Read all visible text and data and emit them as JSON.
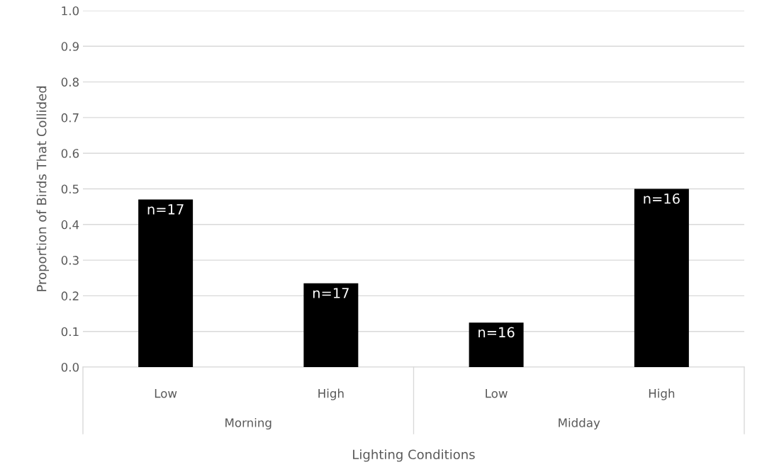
{
  "chart_data": {
    "type": "bar",
    "xlabel": "Lighting Conditions",
    "ylabel": "Proportion of Birds That Collided",
    "categories": [
      "Low",
      "High",
      "Low",
      "High"
    ],
    "values": [
      0.47,
      0.235,
      0.125,
      0.5
    ],
    "color": "#000000",
    "annotations": [
      "Morning",
      "Midday",
      {
        "text": "n=17",
        "y": 0.47
      },
      {
        "text": "n=17",
        "y": 0.235
      },
      {
        "text": "n=16",
        "y": 0.125
      },
      {
        "text": "n=16",
        "y": 0.5
      }
    ],
    "ylim": [
      0,
      1.0
    ],
    "yticks": [
      {
        "value": 0,
        "label": "0.0"
      },
      {
        "value": 0.1,
        "label": "0.1"
      },
      {
        "value": 0.2,
        "label": "0.2"
      },
      {
        "value": 0.3,
        "label": "0.3"
      },
      {
        "value": 0.4,
        "label": "0.4"
      },
      {
        "value": 0.5,
        "label": "0.5"
      },
      {
        "value": 0.6,
        "label": "0.6"
      },
      {
        "value": 0.7,
        "label": "0.7"
      },
      {
        "value": 0.8,
        "label": "0.8"
      },
      {
        "value": 0.9,
        "label": "0.9"
      },
      {
        "value": 1.0,
        "label": "1.0"
      }
    ],
    "grid": "y",
    "legend": false
  }
}
